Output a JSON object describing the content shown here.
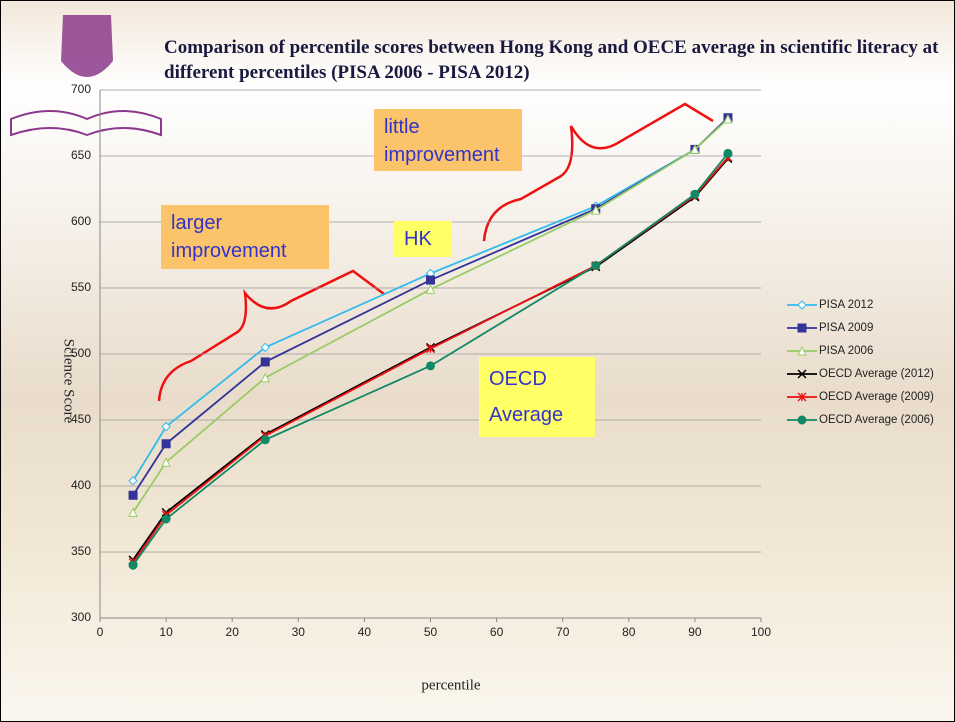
{
  "chart_data": {
    "type": "line",
    "title": "Comparison of percentile scores between Hong Kong and OECE average in scientific literacy at different percentiles  (PISA 2006 - PISA 2012)",
    "x_label": "percentile",
    "y_label": "Science Score",
    "x": [
      5,
      10,
      25,
      50,
      75,
      90,
      95
    ],
    "series": [
      {
        "name": "PISA 2012",
        "color": "#33bbee",
        "marker": "diamond",
        "values": [
          404,
          445,
          505,
          561,
          612,
          655,
          679
        ]
      },
      {
        "name": "PISA 2009",
        "color": "#333399",
        "marker": "square",
        "values": [
          393,
          432,
          494,
          556,
          610,
          655,
          679
        ]
      },
      {
        "name": "PISA 2006",
        "color": "#99cc66",
        "marker": "triangle",
        "values": [
          380,
          418,
          482,
          549,
          609,
          655,
          678
        ]
      },
      {
        "name": "OECD Average (2012)",
        "color": "#000000",
        "marker": "x",
        "values": [
          344,
          380,
          439,
          505,
          566,
          619,
          648
        ]
      },
      {
        "name": "OECD Average (2009)",
        "color": "#ee1111",
        "marker": "star",
        "values": [
          342,
          378,
          438,
          504,
          567,
          620,
          649
        ]
      },
      {
        "name": "OECD Average (2006)",
        "color": "#118866",
        "marker": "circle",
        "values": [
          340,
          375,
          435,
          491,
          567,
          621,
          652
        ]
      }
    ],
    "xlim": [
      0,
      100
    ],
    "xticks": [
      0,
      10,
      20,
      30,
      40,
      50,
      60,
      70,
      80,
      90,
      100
    ],
    "ylim": [
      300,
      700
    ],
    "yticks": [
      300,
      350,
      400,
      450,
      500,
      550,
      600,
      650,
      700
    ],
    "grid": true,
    "legend": "right",
    "annotations": [
      "little improvement",
      "larger improvement",
      "HK",
      "OECD Average"
    ]
  }
}
